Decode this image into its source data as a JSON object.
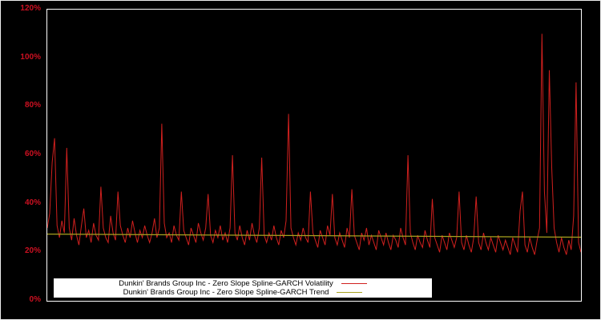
{
  "colors": {
    "background": "#000000",
    "frame": "#ffffff",
    "axis_ticks": "#cc1021",
    "legend_background": "#ffffff",
    "legend_text": "#000000"
  },
  "chart_data": {
    "type": "line",
    "title": "",
    "xlabel": "",
    "ylabel": "",
    "ylim": [
      0,
      120
    ],
    "yticks": [
      0,
      20,
      40,
      60,
      80,
      100,
      120
    ],
    "ytick_suffix": "%",
    "grid": false,
    "legend_position": "bottom-center",
    "series": [
      {
        "name": "Dunkin' Brands Group Inc - Zero Slope Spline-GARCH Volatility",
        "color": "#d0201e",
        "values": [
          30,
          36,
          57,
          67,
          31,
          26,
          33,
          28,
          63,
          30,
          25,
          34,
          27,
          23,
          31,
          38,
          26,
          29,
          24,
          32,
          27,
          25,
          47,
          30,
          26,
          24,
          35,
          28,
          25,
          45,
          31,
          27,
          24,
          30,
          26,
          33,
          28,
          24,
          29,
          26,
          31,
          27,
          24,
          28,
          34,
          26,
          30,
          73,
          32,
          26,
          28,
          24,
          31,
          27,
          25,
          45,
          29,
          26,
          23,
          30,
          27,
          24,
          32,
          28,
          25,
          30,
          44,
          27,
          24,
          29,
          26,
          31,
          25,
          28,
          24,
          30,
          60,
          28,
          25,
          31,
          26,
          23,
          29,
          25,
          32,
          27,
          24,
          30,
          59,
          27,
          24,
          28,
          25,
          31,
          26,
          23,
          29,
          26,
          33,
          77,
          30,
          26,
          23,
          28,
          25,
          30,
          26,
          24,
          45,
          28,
          25,
          22,
          29,
          26,
          23,
          31,
          27,
          44,
          26,
          23,
          28,
          25,
          22,
          30,
          26,
          46,
          27,
          24,
          21,
          28,
          25,
          30,
          23,
          27,
          24,
          21,
          29,
          26,
          23,
          28,
          24,
          21,
          27,
          25,
          22,
          30,
          26,
          23,
          60,
          28,
          24,
          21,
          27,
          24,
          22,
          29,
          25,
          22,
          42,
          26,
          23,
          20,
          27,
          24,
          21,
          28,
          25,
          22,
          26,
          45,
          24,
          21,
          27,
          23,
          20,
          26,
          43,
          24,
          21,
          28,
          24,
          21,
          26,
          23,
          20,
          27,
          24,
          21,
          25,
          22,
          19,
          26,
          23,
          20,
          37,
          45,
          23,
          20,
          26,
          22,
          19,
          25,
          30,
          110,
          45,
          28,
          95,
          55,
          30,
          24,
          20,
          26,
          22,
          19,
          25,
          21,
          35,
          90,
          24,
          20
        ]
      },
      {
        "name": "Dunkin' Brands Group Inc - Zero Slope Spline-GARCH Trend",
        "color": "#a8a21f",
        "values": [
          27.5,
          26.2
        ]
      }
    ]
  }
}
